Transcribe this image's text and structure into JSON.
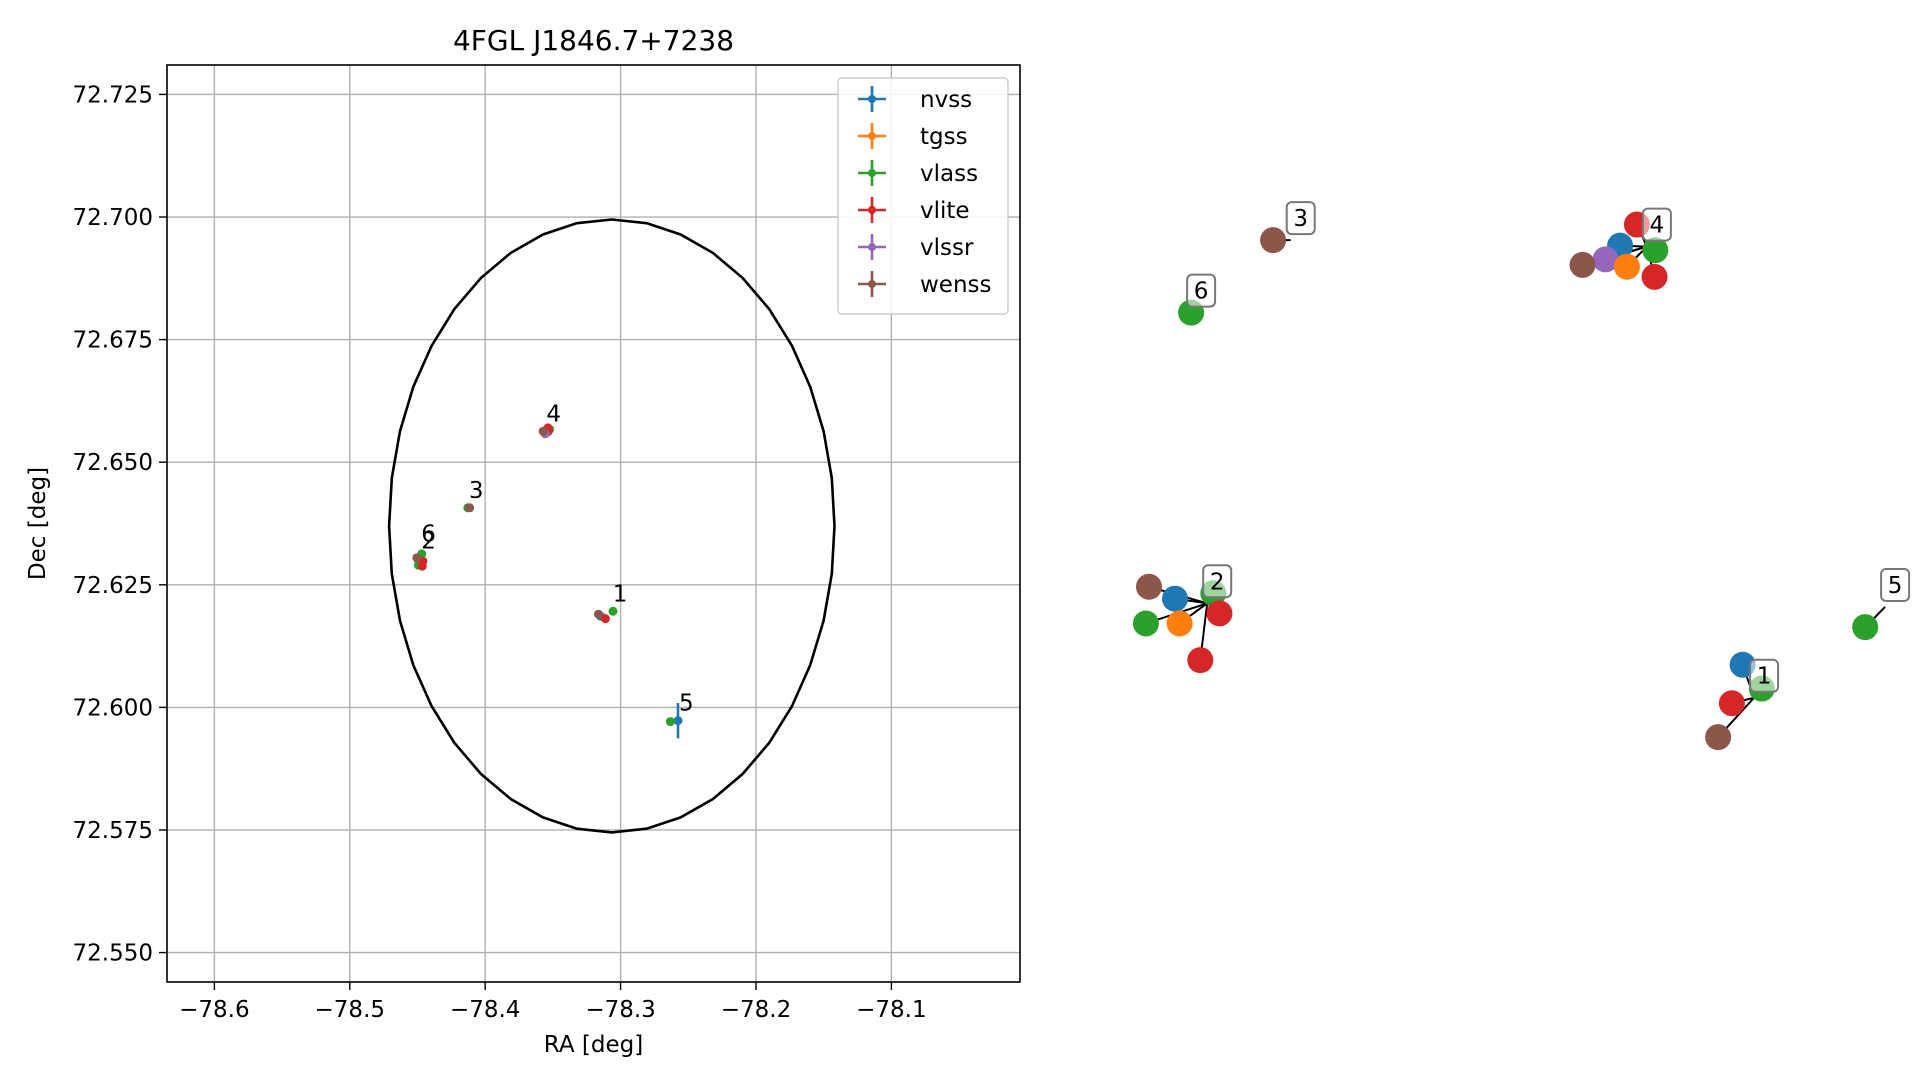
{
  "chart_data": [
    {
      "type": "scatter",
      "title": "4FGL J1846.7+7238",
      "xlabel": "RA [deg]",
      "ylabel": "Dec [deg]",
      "xlim": [
        -78.635,
        -78.005
      ],
      "ylim": [
        72.544,
        72.731
      ],
      "xticks": [
        -78.6,
        -78.5,
        -78.4,
        -78.3,
        -78.2,
        -78.1
      ],
      "xtick_labels": [
        "−78.6",
        "−78.5",
        "−78.4",
        "−78.3",
        "−78.2",
        "−78.1"
      ],
      "yticks": [
        72.55,
        72.575,
        72.6,
        72.625,
        72.65,
        72.675,
        72.7,
        72.725
      ],
      "ytick_labels": [
        "72.550",
        "72.575",
        "72.600",
        "72.625",
        "72.650",
        "72.675",
        "72.700",
        "72.725"
      ],
      "grid": true,
      "legend": "top-right",
      "ellipse": {
        "center": [
          -78.3065,
          72.637
        ],
        "semi_ra": 0.1645,
        "semi_dec": 0.0625
      },
      "series": [
        {
          "name": "nvss",
          "color": "#1f77b4",
          "points": [
            {
              "x": -78.3148,
              "y": 72.6186
            },
            {
              "x": -78.4493,
              "y": 72.63
            },
            {
              "x": -78.3554,
              "y": 72.6564
            },
            {
              "x": -78.2576,
              "y": 72.5973
            }
          ]
        },
        {
          "name": "tgss",
          "color": "#ff7f0e",
          "points": [
            {
              "x": -78.4479,
              "y": 72.6291
            },
            {
              "x": -78.3546,
              "y": 72.656
            }
          ]
        },
        {
          "name": "vlass",
          "color": "#2ca02c",
          "points": [
            {
              "x": -78.3056,
              "y": 72.6196
            },
            {
              "x": -78.4469,
              "y": 72.6313
            },
            {
              "x": -78.4493,
              "y": 72.629
            },
            {
              "x": -78.2632,
              "y": 72.5971
            },
            {
              "x": -78.4128,
              "y": 72.6407
            },
            {
              "x": -78.3524,
              "y": 72.6567
            }
          ]
        },
        {
          "name": "vlite",
          "color": "#d62728",
          "points": [
            {
              "x": -78.3112,
              "y": 72.6181
            },
            {
              "x": -78.446,
              "y": 72.6298
            },
            {
              "x": -78.4465,
              "y": 72.6288
            },
            {
              "x": -78.3536,
              "y": 72.657
            },
            {
              "x": -78.3534,
              "y": 72.6563
            }
          ]
        },
        {
          "name": "vlssr",
          "color": "#9467bd",
          "points": [
            {
              "x": -78.3557,
              "y": 72.6558
            }
          ]
        },
        {
          "name": "wenss",
          "color": "#8c564b",
          "points": [
            {
              "x": -78.3163,
              "y": 72.619
            },
            {
              "x": -78.4505,
              "y": 72.6305
            },
            {
              "x": -78.4115,
              "y": 72.6407
            },
            {
              "x": -78.3572,
              "y": 72.6563
            }
          ]
        }
      ],
      "error_bars": [
        {
          "series": "nvss",
          "x": -78.2576,
          "y": 72.5973,
          "yerr": 0.0036,
          "xerr": 0.0008
        }
      ],
      "annotations": [
        {
          "text": "1",
          "x": -78.3065,
          "y": 72.6196
        },
        {
          "text": "2",
          "x": -78.448,
          "y": 72.6304
        },
        {
          "text": "3",
          "x": -78.4128,
          "y": 72.6407
        },
        {
          "text": "4",
          "x": -78.3555,
          "y": 72.6563
        },
        {
          "text": "5",
          "x": -78.2576,
          "y": 72.5973
        },
        {
          "text": "6",
          "x": -78.448,
          "y": 72.6318
        }
      ]
    },
    {
      "type": "network",
      "colors": {
        "nvss": "#1f77b4",
        "tgss": "#ff7f0e",
        "vlass": "#2ca02c",
        "vlite": "#d62728",
        "vlssr": "#9467bd",
        "wenss": "#8c564b"
      },
      "clusters": [
        {
          "label": "1",
          "hub": [
            0.82,
            0.69
          ],
          "nodes": [
            {
              "s": "nvss",
              "p": [
                0.805,
                0.654
              ]
            },
            {
              "s": "vlass",
              "p": [
                0.83,
                0.68
              ]
            },
            {
              "s": "vlite",
              "p": [
                0.791,
                0.696
              ]
            },
            {
              "s": "wenss",
              "p": [
                0.773,
                0.733
              ]
            }
          ]
        },
        {
          "label": "2",
          "hub": [
            0.106,
            0.587
          ],
          "nodes": [
            {
              "s": "wenss",
              "p": [
                0.03,
                0.569
              ]
            },
            {
              "s": "nvss",
              "p": [
                0.064,
                0.582
              ]
            },
            {
              "s": "vlass",
              "p": [
                0.114,
                0.576
              ]
            },
            {
              "s": "vlite",
              "p": [
                0.122,
                0.598
              ]
            },
            {
              "s": "vlass",
              "p": [
                0.026,
                0.609
              ]
            },
            {
              "s": "tgss",
              "p": [
                0.07,
                0.609
              ]
            },
            {
              "s": "vlite",
              "p": [
                0.097,
                0.649
              ]
            }
          ]
        },
        {
          "label": "3",
          "hub": [
            0.215,
            0.191
          ],
          "nodes": [
            {
              "s": "wenss",
              "p": [
                0.192,
                0.191
              ]
            }
          ]
        },
        {
          "label": "4",
          "hub": [
            0.68,
            0.198
          ],
          "nodes": [
            {
              "s": "vlite",
              "p": [
                0.667,
                0.174
              ]
            },
            {
              "s": "nvss",
              "p": [
                0.645,
                0.197
              ]
            },
            {
              "s": "vlass",
              "p": [
                0.691,
                0.202
              ]
            },
            {
              "s": "vlssr",
              "p": [
                0.626,
                0.212
              ]
            },
            {
              "s": "wenss",
              "p": [
                0.596,
                0.218
              ]
            },
            {
              "s": "tgss",
              "p": [
                0.654,
                0.22
              ]
            },
            {
              "s": "vlite",
              "p": [
                0.69,
                0.231
              ]
            }
          ]
        },
        {
          "label": "5",
          "hub": [
            0.991,
            0.591
          ],
          "nodes": [
            {
              "s": "vlass",
              "p": [
                0.965,
                0.613
              ]
            }
          ]
        },
        {
          "label": "6",
          "hub": [
            0.085,
            0.27
          ],
          "nodes": [
            {
              "s": "vlass",
              "p": [
                0.085,
                0.27
              ]
            }
          ]
        }
      ]
    }
  ]
}
